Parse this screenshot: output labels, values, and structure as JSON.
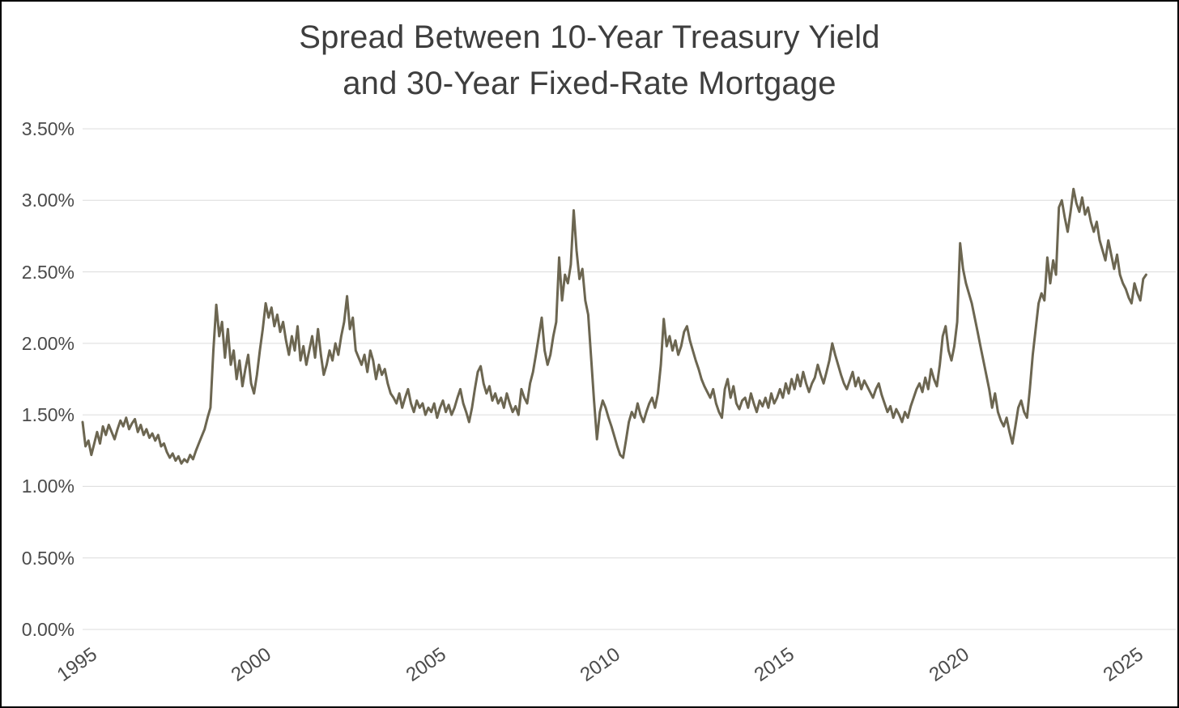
{
  "page": {
    "background_color": "#ffffff",
    "border_color": "#000000"
  },
  "chart_data": {
    "type": "line",
    "title": "Spread Between 10-Year Treasury Yield and 30-Year Fixed-Rate Mortgage",
    "title_line1": "Spread Between 10-Year Treasury Yield",
    "title_line2": "and 30-Year Fixed-Rate Mortgage",
    "ylabel": "",
    "xlabel": "",
    "grid": true,
    "legend": "none",
    "line_color": "#6c6651",
    "grid_color": "#dcdcdc",
    "tick_label_color": "#4b4b4b",
    "ylim": [
      0,
      3.5
    ],
    "xlim": [
      1995,
      2025.7
    ],
    "y_tick_values": [
      0,
      0.5,
      1.0,
      1.5,
      2.0,
      2.5,
      3.0,
      3.5
    ],
    "y_tick_labels": [
      "0.00%",
      "0.50%",
      "1.00%",
      "1.50%",
      "2.00%",
      "2.50%",
      "3.00%",
      "3.50%"
    ],
    "x_tick_values": [
      1995,
      2000,
      2005,
      2010,
      2015,
      2020,
      2025
    ],
    "x_tick_labels": [
      "1995",
      "2000",
      "2005",
      "2010",
      "2015",
      "2020",
      "2025"
    ],
    "start_year": 1995,
    "points_per_year": 12,
    "unit": "percent",
    "values": [
      1.45,
      1.28,
      1.32,
      1.22,
      1.3,
      1.38,
      1.3,
      1.42,
      1.36,
      1.43,
      1.38,
      1.33,
      1.4,
      1.46,
      1.42,
      1.48,
      1.4,
      1.44,
      1.47,
      1.38,
      1.43,
      1.36,
      1.4,
      1.34,
      1.37,
      1.32,
      1.36,
      1.28,
      1.3,
      1.24,
      1.2,
      1.23,
      1.18,
      1.21,
      1.16,
      1.19,
      1.17,
      1.22,
      1.19,
      1.25,
      1.3,
      1.35,
      1.4,
      1.48,
      1.55,
      1.95,
      2.27,
      2.05,
      2.15,
      1.9,
      2.1,
      1.85,
      1.95,
      1.75,
      1.88,
      1.7,
      1.82,
      1.92,
      1.72,
      1.65,
      1.78,
      1.95,
      2.1,
      2.28,
      2.18,
      2.25,
      2.12,
      2.2,
      2.08,
      2.15,
      2.02,
      1.92,
      2.05,
      1.95,
      2.12,
      1.88,
      1.98,
      1.85,
      1.95,
      2.05,
      1.9,
      2.1,
      1.92,
      1.78,
      1.85,
      1.95,
      1.88,
      2.0,
      1.92,
      2.05,
      2.15,
      2.33,
      2.1,
      2.18,
      1.95,
      1.9,
      1.85,
      1.92,
      1.8,
      1.95,
      1.88,
      1.75,
      1.85,
      1.78,
      1.82,
      1.72,
      1.65,
      1.62,
      1.58,
      1.65,
      1.55,
      1.62,
      1.68,
      1.58,
      1.52,
      1.6,
      1.55,
      1.58,
      1.5,
      1.55,
      1.52,
      1.58,
      1.48,
      1.55,
      1.6,
      1.52,
      1.57,
      1.5,
      1.55,
      1.62,
      1.68,
      1.58,
      1.52,
      1.45,
      1.55,
      1.68,
      1.8,
      1.84,
      1.72,
      1.65,
      1.7,
      1.6,
      1.65,
      1.58,
      1.62,
      1.55,
      1.65,
      1.58,
      1.52,
      1.56,
      1.5,
      1.68,
      1.62,
      1.58,
      1.72,
      1.8,
      1.92,
      2.05,
      2.18,
      1.95,
      1.85,
      1.92,
      2.05,
      2.15,
      2.6,
      2.3,
      2.48,
      2.42,
      2.55,
      2.93,
      2.65,
      2.45,
      2.52,
      2.3,
      2.2,
      1.9,
      1.6,
      1.33,
      1.52,
      1.6,
      1.55,
      1.48,
      1.42,
      1.35,
      1.28,
      1.22,
      1.2,
      1.32,
      1.45,
      1.52,
      1.48,
      1.58,
      1.5,
      1.45,
      1.52,
      1.58,
      1.62,
      1.55,
      1.65,
      1.85,
      2.17,
      1.98,
      2.05,
      1.95,
      2.02,
      1.92,
      1.98,
      2.08,
      2.12,
      2.02,
      1.95,
      1.88,
      1.82,
      1.75,
      1.7,
      1.66,
      1.62,
      1.68,
      1.58,
      1.52,
      1.48,
      1.68,
      1.75,
      1.62,
      1.7,
      1.58,
      1.54,
      1.6,
      1.62,
      1.55,
      1.65,
      1.58,
      1.52,
      1.6,
      1.56,
      1.62,
      1.55,
      1.65,
      1.58,
      1.62,
      1.68,
      1.62,
      1.72,
      1.65,
      1.75,
      1.68,
      1.78,
      1.7,
      1.8,
      1.72,
      1.66,
      1.72,
      1.76,
      1.85,
      1.78,
      1.72,
      1.8,
      1.88,
      2.0,
      1.92,
      1.85,
      1.78,
      1.72,
      1.68,
      1.74,
      1.8,
      1.7,
      1.76,
      1.68,
      1.74,
      1.7,
      1.66,
      1.62,
      1.68,
      1.72,
      1.64,
      1.58,
      1.52,
      1.56,
      1.48,
      1.54,
      1.5,
      1.45,
      1.52,
      1.48,
      1.56,
      1.62,
      1.68,
      1.72,
      1.66,
      1.76,
      1.68,
      1.82,
      1.75,
      1.7,
      1.85,
      2.05,
      2.12,
      1.95,
      1.88,
      1.98,
      2.15,
      2.7,
      2.52,
      2.42,
      2.35,
      2.28,
      2.18,
      2.08,
      1.98,
      1.88,
      1.78,
      1.68,
      1.55,
      1.65,
      1.52,
      1.46,
      1.42,
      1.48,
      1.38,
      1.3,
      1.42,
      1.55,
      1.6,
      1.52,
      1.48,
      1.68,
      1.92,
      2.1,
      2.28,
      2.35,
      2.3,
      2.6,
      2.42,
      2.58,
      2.48,
      2.95,
      3.0,
      2.88,
      2.78,
      2.92,
      3.08,
      2.98,
      2.92,
      3.02,
      2.9,
      2.95,
      2.85,
      2.78,
      2.85,
      2.72,
      2.65,
      2.58,
      2.72,
      2.62,
      2.52,
      2.62,
      2.48,
      2.42,
      2.38,
      2.32,
      2.28,
      2.42,
      2.35,
      2.3,
      2.45,
      2.48
    ]
  }
}
